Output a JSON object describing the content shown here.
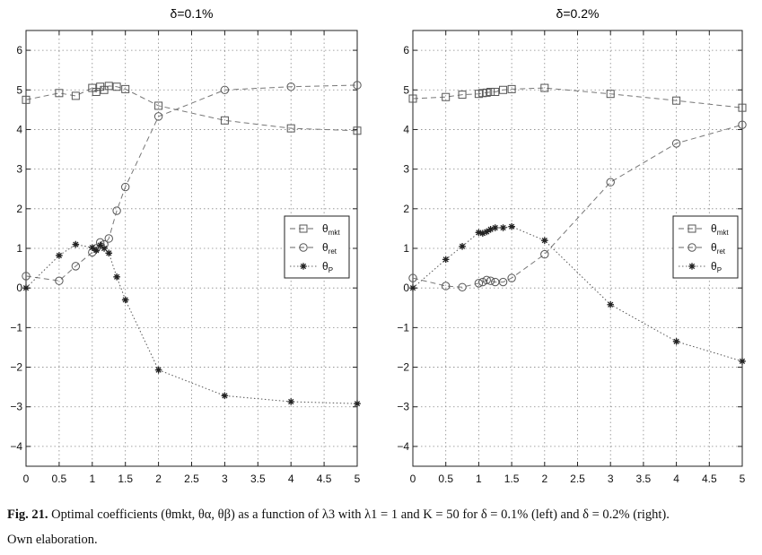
{
  "caption": {
    "label": "Fig. 21.",
    "text": "Optimal coefficients (θmkt, θα, θβ) as a function of λ3 with λ1 = 1 and K = 50 for δ = 0.1% (left) and δ = 0.2% (right).",
    "line2": "Own elaboration."
  },
  "chart_data": [
    {
      "type": "line",
      "title": "δ=0.1%",
      "xlabel": "",
      "ylabel": "",
      "xlim": [
        0,
        5
      ],
      "ylim": [
        -4.5,
        6.5
      ],
      "xticks": [
        0,
        0.5,
        1,
        1.5,
        2,
        2.5,
        3,
        3.5,
        4,
        4.5,
        5
      ],
      "xtick_labels": [
        "0",
        "0.5",
        "1",
        "1.5",
        "2",
        "2.5",
        "3",
        "3.5",
        "4",
        "4.5",
        "5"
      ],
      "yticks": [
        6,
        5,
        4,
        3,
        2,
        1,
        0,
        -1,
        -2,
        -3,
        -4
      ],
      "ytick_labels": [
        "6",
        "5",
        "4",
        "3",
        "2",
        "1",
        "0",
        "−1",
        "−2",
        "−3",
        "−4"
      ],
      "grid": true,
      "legend_position": "middle-right",
      "series": [
        {
          "name": "θmkt",
          "legend_base": "θ",
          "legend_sub": "mkt",
          "marker": "square",
          "line": "dashed",
          "x": [
            0,
            0.5,
            0.75,
            1.0,
            1.06,
            1.12,
            1.18,
            1.25,
            1.37,
            1.5,
            2,
            3,
            4,
            5
          ],
          "y": [
            4.75,
            4.92,
            4.85,
            5.05,
            4.95,
            5.08,
            5.0,
            5.1,
            5.08,
            5.02,
            4.6,
            4.23,
            4.03,
            3.97
          ]
        },
        {
          "name": "θret",
          "legend_base": "θ",
          "legend_sub": "ret",
          "marker": "circle",
          "line": "dashed",
          "x": [
            0,
            0.5,
            0.75,
            1.0,
            1.06,
            1.12,
            1.18,
            1.25,
            1.37,
            1.5,
            2,
            3,
            4,
            5
          ],
          "y": [
            0.3,
            0.18,
            0.55,
            0.9,
            1.0,
            1.15,
            1.1,
            1.25,
            1.95,
            2.55,
            4.33,
            5.0,
            5.08,
            5.12
          ]
        },
        {
          "name": "θP",
          "legend_base": "θ",
          "legend_sub": "P",
          "marker": "star",
          "line": "dotted",
          "x": [
            0,
            0.5,
            0.75,
            1.0,
            1.06,
            1.12,
            1.18,
            1.25,
            1.37,
            1.5,
            2,
            3,
            4,
            5
          ],
          "y": [
            0.0,
            0.82,
            1.1,
            1.02,
            0.95,
            1.08,
            1.0,
            0.88,
            0.28,
            -0.3,
            -2.07,
            -2.72,
            -2.87,
            -2.92
          ]
        }
      ]
    },
    {
      "type": "line",
      "title": "δ=0.2%",
      "xlabel": "",
      "ylabel": "",
      "xlim": [
        0,
        5
      ],
      "ylim": [
        -4.5,
        6.5
      ],
      "xticks": [
        0,
        0.5,
        1,
        1.5,
        2,
        2.5,
        3,
        3.5,
        4,
        4.5,
        5
      ],
      "xtick_labels": [
        "0",
        "0.5",
        "1",
        "1.5",
        "2",
        "2.5",
        "3",
        "3.5",
        "4",
        "4.5",
        "5"
      ],
      "yticks": [
        6,
        5,
        4,
        3,
        2,
        1,
        0,
        -1,
        -2,
        -3,
        -4
      ],
      "ytick_labels": [
        "6",
        "5",
        "4",
        "3",
        "2",
        "1",
        "0",
        "−1",
        "−2",
        "−3",
        "−4"
      ],
      "grid": true,
      "legend_position": "middle-right",
      "series": [
        {
          "name": "θmkt",
          "legend_base": "θ",
          "legend_sub": "mkt",
          "marker": "square",
          "line": "dashed",
          "x": [
            0,
            0.5,
            0.75,
            1.0,
            1.06,
            1.12,
            1.18,
            1.25,
            1.37,
            1.5,
            2,
            3,
            4,
            5
          ],
          "y": [
            4.78,
            4.82,
            4.88,
            4.9,
            4.92,
            4.93,
            4.95,
            4.95,
            5.0,
            5.02,
            5.05,
            4.9,
            4.73,
            4.55
          ]
        },
        {
          "name": "θret",
          "legend_base": "θ",
          "legend_sub": "ret",
          "marker": "circle",
          "line": "dashed",
          "x": [
            0,
            0.5,
            0.75,
            1.0,
            1.06,
            1.12,
            1.18,
            1.25,
            1.37,
            1.5,
            2,
            3,
            4,
            5
          ],
          "y": [
            0.25,
            0.05,
            0.02,
            0.12,
            0.15,
            0.2,
            0.18,
            0.15,
            0.15,
            0.25,
            0.85,
            2.67,
            3.65,
            4.12
          ]
        },
        {
          "name": "θP",
          "legend_base": "θ",
          "legend_sub": "P",
          "marker": "star",
          "line": "dotted",
          "x": [
            0,
            0.5,
            0.75,
            1.0,
            1.06,
            1.12,
            1.18,
            1.25,
            1.37,
            1.5,
            2,
            3,
            4,
            5
          ],
          "y": [
            0.0,
            0.72,
            1.05,
            1.4,
            1.38,
            1.42,
            1.48,
            1.52,
            1.52,
            1.55,
            1.2,
            -0.42,
            -1.35,
            -1.85
          ]
        }
      ]
    }
  ]
}
